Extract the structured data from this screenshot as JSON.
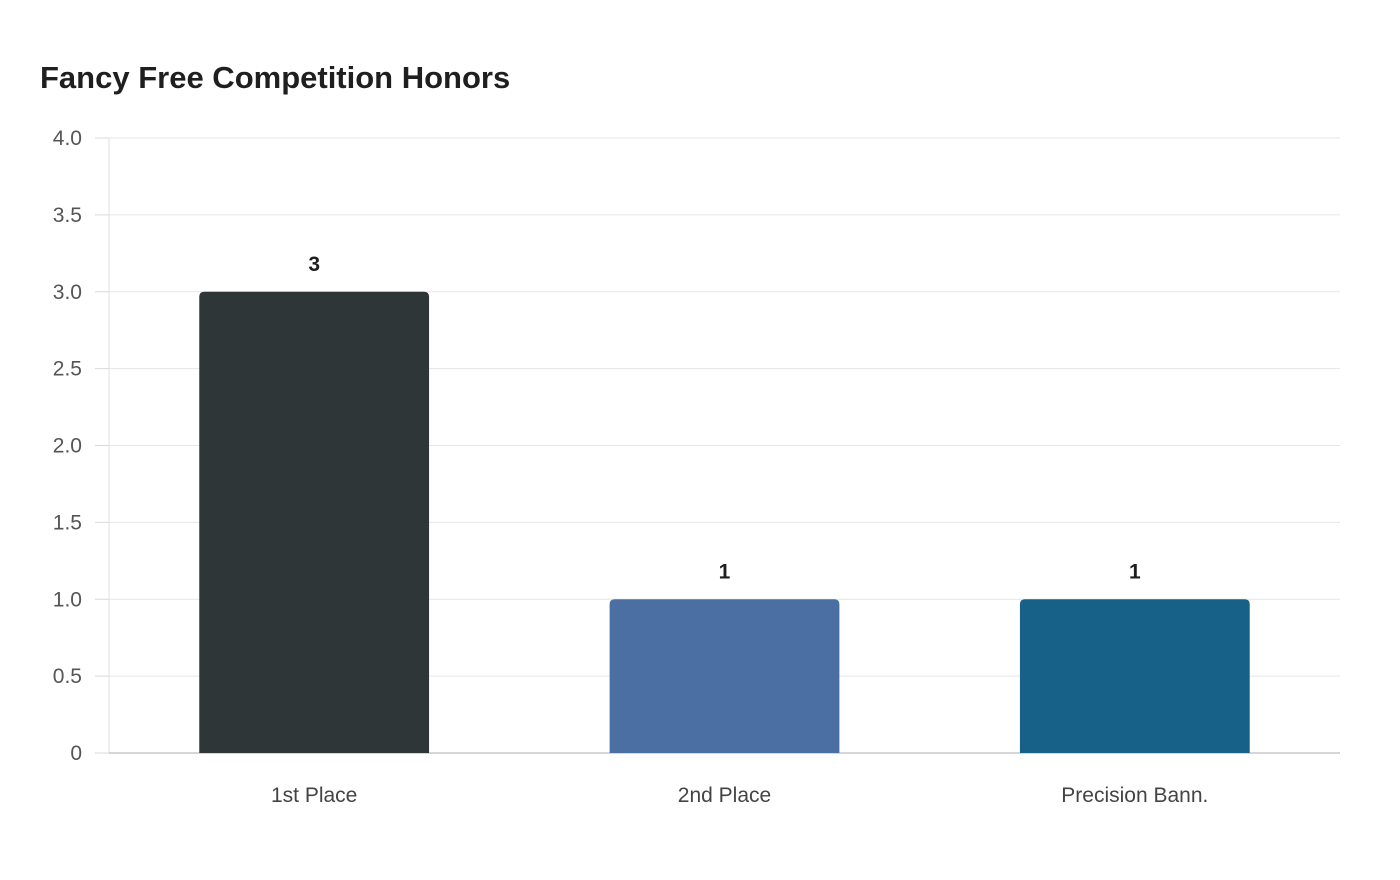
{
  "chart_data": {
    "type": "bar",
    "title": "Fancy Free Competition Honors",
    "xlabel": "",
    "ylabel": "",
    "categories": [
      "1st Place",
      "2nd Place",
      "Precision Bann."
    ],
    "values": [
      3,
      1,
      1
    ],
    "data_labels": [
      "3",
      "1",
      "1"
    ],
    "colors": [
      "#2e3638",
      "#4b6ea3",
      "#176087"
    ],
    "ylim": [
      0,
      4
    ],
    "yticks": [
      0,
      0.5,
      1.0,
      1.5,
      2.0,
      2.5,
      3.0,
      3.5,
      4.0
    ],
    "ytick_labels": [
      "0",
      "0.5",
      "1.0",
      "1.5",
      "2.0",
      "2.5",
      "3.0",
      "3.5",
      "4.0"
    ],
    "grid": true,
    "legend": "none"
  }
}
